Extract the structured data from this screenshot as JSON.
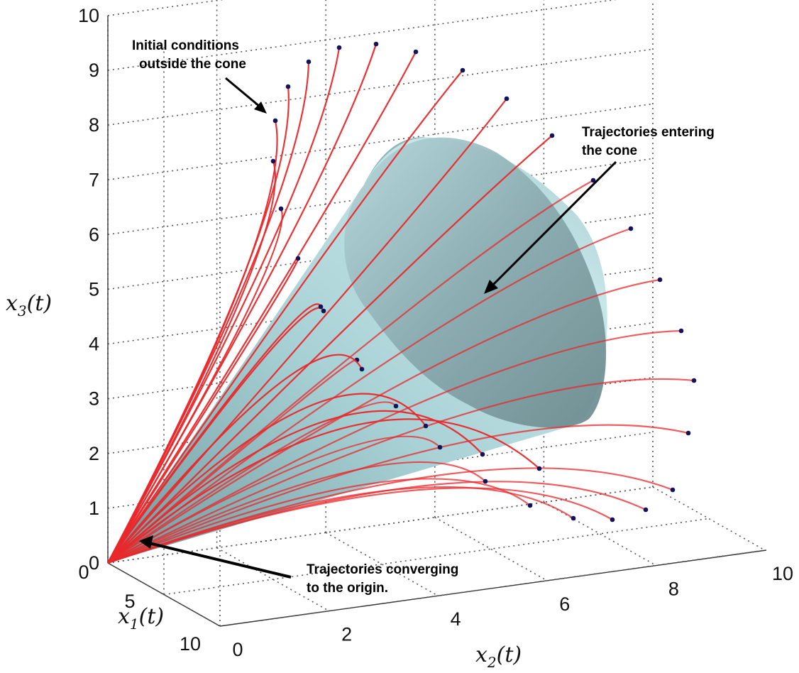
{
  "chart_data": {
    "type": "3d-line",
    "title": "",
    "axes": {
      "x1": {
        "label": "x_1(t)",
        "ticks": [
          "0",
          "5",
          "10"
        ],
        "range": [
          0,
          10
        ]
      },
      "x2": {
        "label": "x_2(t)",
        "ticks": [
          "0",
          "2",
          "4",
          "6",
          "8",
          "10"
        ],
        "range": [
          0,
          10
        ]
      },
      "x3": {
        "label": "x_3(t)",
        "ticks": [
          "0",
          "1",
          "2",
          "3",
          "4",
          "5",
          "6",
          "7",
          "8",
          "9",
          "10"
        ],
        "range": [
          0,
          10
        ]
      }
    },
    "grid": true,
    "surface": {
      "name": "cone",
      "apex": [
        0,
        0,
        0
      ],
      "color": "#9ec4c8"
    },
    "series": [
      {
        "type": "trajectories",
        "color": "#e8282b",
        "marker_color": "#13135a",
        "count": 33,
        "end": [
          0,
          0,
          0
        ]
      }
    ],
    "annotations": [
      {
        "id": "initial",
        "lines": [
          "Initial conditions",
          "outside the cone"
        ]
      },
      {
        "id": "entering",
        "lines": [
          "Trajectories entering",
          "the cone"
        ]
      },
      {
        "id": "converging",
        "lines": [
          "Trajectories converging",
          "to the origin."
        ]
      }
    ],
    "colors": {
      "trajectory": "#e8282b",
      "marker": "#13135a",
      "cone_light": "#bfe3e6",
      "cone_dark": "#6d9196"
    }
  }
}
